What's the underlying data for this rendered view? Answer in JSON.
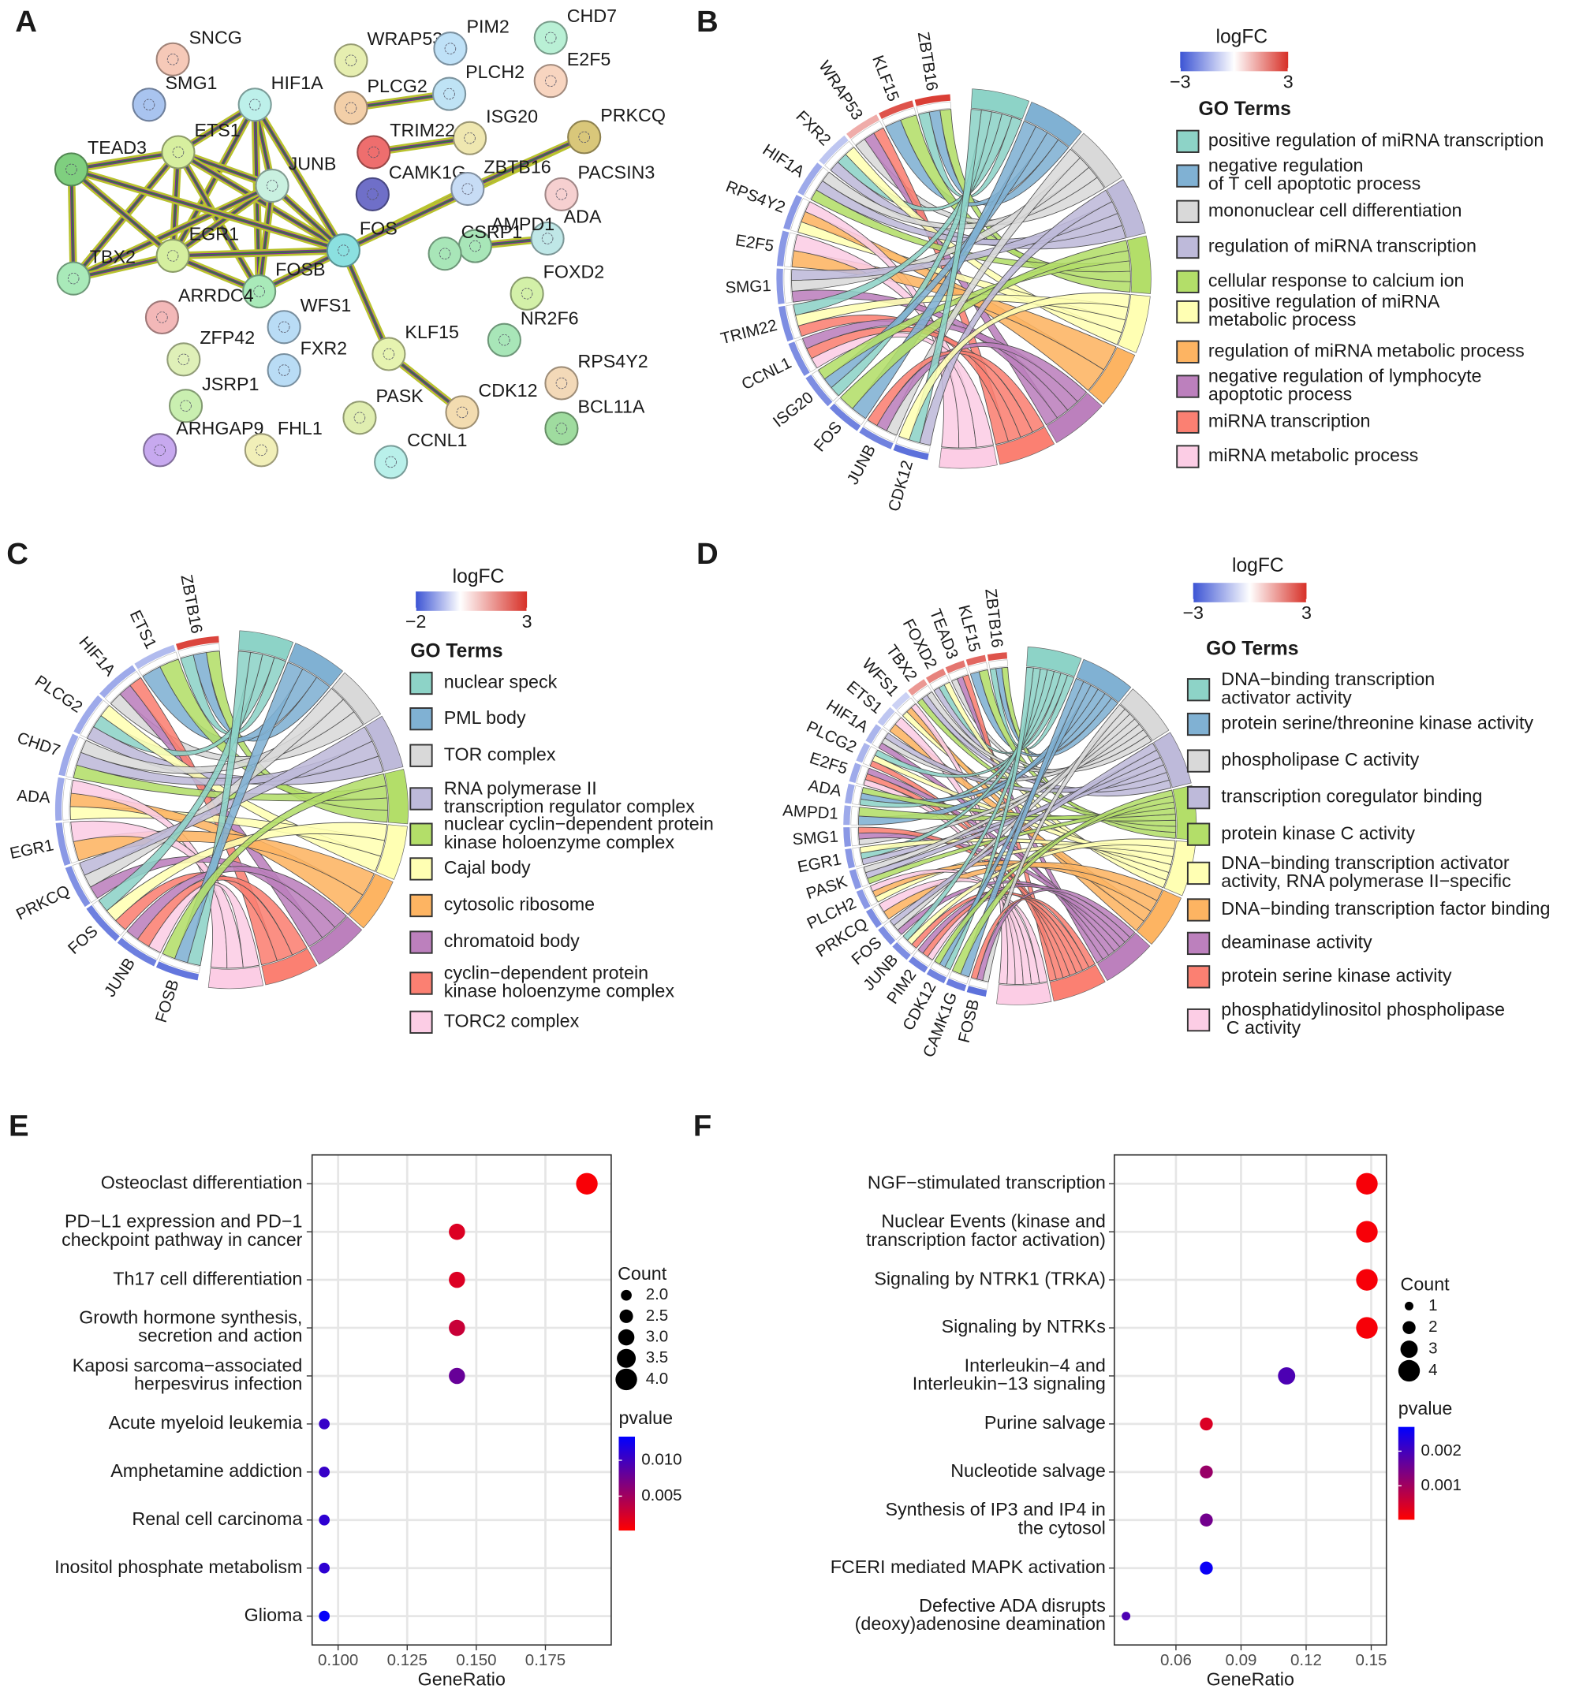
{
  "panel_labels": [
    "A",
    "B",
    "C",
    "D",
    "E",
    "F"
  ],
  "network": {
    "nodes": [
      "SNCG",
      "SMG1",
      "HIF1A",
      "WRAP53",
      "PIM2",
      "CHD7",
      "E2F5",
      "PLCG2",
      "PLCH2",
      "ISG20",
      "PRKCQ",
      "TEAD3",
      "ETS1",
      "TRIM22",
      "JUNB",
      "CAMK1G",
      "ZBTB16",
      "PACSIN3",
      "FOS",
      "EGR1",
      "ADA",
      "AMPD1",
      "CSRP1",
      "FOXD2",
      "TBX2",
      "FOSB",
      "ARRDC4",
      "WFS1",
      "NR2F6",
      "KLF15",
      "ZFP42",
      "FXR2",
      "RPS4Y2",
      "JSRP1",
      "CDK12",
      "PASK",
      "BCL11A",
      "ARHGAP9",
      "FHL1",
      "CCNL1"
    ]
  },
  "chords": [
    {
      "genes": [
        "ZBTB16",
        "KLF15",
        "WRAP53",
        "FXR2",
        "HIF1A",
        "RPS4Y2",
        "E2F5",
        "SMG1",
        "TRIM22",
        "CCNL1",
        "ISG20",
        "FOS",
        "JUNB",
        "CDK12"
      ],
      "logfc": [
        2.8,
        2.5,
        1.2,
        -1,
        -1.5,
        -1.8,
        -1.8,
        -1.8,
        -2,
        -2,
        -2,
        -2.2,
        -2.2,
        -2.5
      ],
      "legend": {
        "title": "logFC",
        "ticks": [
          {
            "value": -3,
            "label": "−3"
          },
          3
        ],
        "low_color": "#3c54d4",
        "high_color": "#d73027"
      },
      "terms_title": "GO Terms",
      "terms": [
        {
          "name": "positive regulation of miRNA transcription",
          "color": "#8dd3c7"
        },
        {
          "name": "negative regulation\nof T cell apoptotic process",
          "color": "#80b1d3"
        },
        {
          "name": "mononuclear cell differentiation",
          "color": "#d9d9d9"
        },
        {
          "name": "regulation of miRNA transcription",
          "color": "#bebada"
        },
        {
          "name": "cellular response to calcium ion",
          "color": "#b3de69"
        },
        {
          "name": "positive regulation of miRNA\nmetabolic process",
          "color": "#ffffb3"
        },
        {
          "name": "regulation of miRNA metabolic process",
          "color": "#fdb462"
        },
        {
          "name": "negative regulation of lymphocyte\napoptotic process",
          "color": "#bc80bd"
        },
        {
          "name": "miRNA transcription",
          "color": "#fb8072"
        },
        {
          "name": "miRNA metabolic process",
          "color": "#fccde5"
        }
      ]
    },
    {
      "genes": [
        "ZBTB16",
        "ETS1",
        "HIF1A",
        "PLCG2",
        "CHD7",
        "ADA",
        "EGR1",
        "PRKCQ",
        "FOS",
        "JUNB",
        "FOSB"
      ],
      "logfc": [
        2.7,
        -0.8,
        -1,
        -1,
        -1,
        -1,
        -1.2,
        -1.3,
        -1.5,
        -1.5,
        -1.6
      ],
      "legend": {
        "title": "logFC",
        "ticks": [
          {
            "value": -2,
            "label": "−2"
          },
          3
        ],
        "low_color": "#3c54d4",
        "high_color": "#d73027"
      },
      "terms_title": "GO Terms",
      "terms": [
        {
          "name": "nuclear speck",
          "color": "#8dd3c7"
        },
        {
          "name": "PML body",
          "color": "#80b1d3"
        },
        {
          "name": "TOR complex",
          "color": "#d9d9d9"
        },
        {
          "name": "RNA polymerase II\ntranscription regulator complex",
          "color": "#bebada"
        },
        {
          "name": "nuclear cyclin−dependent protein\nkinase holoenzyme complex",
          "color": "#b3de69"
        },
        {
          "name": "Cajal body",
          "color": "#ffffb3"
        },
        {
          "name": "cytosolic ribosome",
          "color": "#fdb462"
        },
        {
          "name": "chromatoid body",
          "color": "#bc80bd"
        },
        {
          "name": "cyclin−dependent protein\nkinase holoenzyme complex",
          "color": "#fb8072"
        },
        {
          "name": "TORC2 complex",
          "color": "#fccde5"
        }
      ]
    },
    {
      "genes": [
        "ZBTB16",
        "KLF15",
        "TEAD3",
        "FOXD2",
        "TBX2",
        "WFS1",
        "ETS1",
        "HIF1A",
        "PLCG2",
        "E2F5",
        "ADA",
        "AMPD1",
        "SMG1",
        "EGR1",
        "PASK",
        "PLCH2",
        "PRKCQ",
        "FOS",
        "JUNB",
        "PIM2",
        "CDK12",
        "CAMK1G",
        "FOSB"
      ],
      "logfc": [
        2.5,
        2.2,
        2,
        1.8,
        1.5,
        -0.8,
        -1,
        -1.3,
        -1.3,
        -1.5,
        -1.5,
        -1.5,
        -1.8,
        -1.8,
        -1.8,
        -1.8,
        -2,
        -2,
        -2,
        -2.2,
        -2.2,
        -2.3,
        -2.5
      ],
      "legend": {
        "title": "logFC",
        "ticks": [
          {
            "value": -3,
            "label": "−3"
          },
          3
        ],
        "low_color": "#3c54d4",
        "high_color": "#d73027"
      },
      "terms_title": "GO Terms",
      "terms": [
        {
          "name": "DNA−binding transcription\nactivator activity",
          "color": "#8dd3c7"
        },
        {
          "name": "protein serine/threonine kinase activity",
          "color": "#80b1d3"
        },
        {
          "name": "phospholipase C activity",
          "color": "#d9d9d9"
        },
        {
          "name": "transcription coregulator binding",
          "color": "#bebada"
        },
        {
          "name": "protein kinase C activity",
          "color": "#b3de69"
        },
        {
          "name": "DNA−binding transcription activator\nactivity, RNA polymerase II−specific",
          "color": "#ffffb3"
        },
        {
          "name": "DNA−binding transcription factor binding",
          "color": "#fdb462"
        },
        {
          "name": "deaminase activity",
          "color": "#bc80bd"
        },
        {
          "name": "protein serine kinase activity",
          "color": "#fb8072"
        },
        {
          "name": "phosphatidylinositol phospholipase\n C activity",
          "color": "#fccde5"
        }
      ]
    }
  ],
  "chart_data": [
    {
      "type": "dot",
      "x_label": "GeneRatio",
      "categories": [
        "Osteoclast differentiation",
        "PD−L1 expression and PD−1\ncheckpoint pathway in cancer",
        "Th17 cell differentiation",
        "Growth hormone synthesis,\nsecretion and action",
        "Kaposi sarcoma−associated\nherpesvirus infection",
        "Acute myeloid leukemia",
        "Amphetamine addiction",
        "Renal cell carcinoma",
        "Inositol phosphate metabolism",
        "Glioma"
      ],
      "values": [
        0.19,
        0.143,
        0.143,
        0.143,
        0.143,
        0.095,
        0.095,
        0.095,
        0.095,
        0.095
      ],
      "sizes": [
        4,
        3,
        3,
        3,
        3,
        2,
        2,
        2,
        2,
        2
      ],
      "pvalues": [
        0.0005,
        0.002,
        0.002,
        0.003,
        0.008,
        0.0105,
        0.0105,
        0.011,
        0.011,
        0.013
      ],
      "xlim": [
        0.0906,
        0.1988
      ],
      "xticks": [
        {
          "value": 0.1,
          "label": "0.100"
        },
        0.125,
        {
          "value": 0.15,
          "label": "0.150"
        },
        0.175
      ],
      "grid": true,
      "size_legend": {
        "title": "Count",
        "values": [
          {
            "value": 2,
            "label": "2.0"
          },
          2.5,
          {
            "value": 3,
            "label": "3.0"
          },
          3.5,
          {
            "value": 4,
            "label": "4.0"
          }
        ]
      },
      "color_legend": {
        "title": "pvalue",
        "lim": [
          0.0002,
          0.0133
        ],
        "ticks": [
          {
            "value": 0.005,
            "label": "0.005"
          },
          {
            "value": 0.01,
            "label": "0.010"
          }
        ],
        "low_color": "#ff0000",
        "high_color": "#0000ff"
      }
    },
    {
      "type": "dot",
      "x_label": "GeneRatio",
      "categories": [
        "NGF−stimulated transcription",
        "Nuclear Events (kinase and\ntranscription factor activation)",
        "Signaling by NTRK1 (TRKA)",
        "Signaling by NTRKs",
        "Interleukin−4 and\nInterleukin−13 signaling",
        "Purine salvage",
        "Nucleotide salvage",
        "Synthesis of IP3 and IP4 in\nthe cytosol",
        "FCERI mediated MAPK activation",
        "Defective ADA disrupts\n(deoxy)adenosine deamination"
      ],
      "values": [
        0.148,
        0.148,
        0.148,
        0.148,
        0.111,
        0.074,
        0.074,
        0.074,
        0.074,
        0.037
      ],
      "sizes": [
        4,
        4,
        4,
        4,
        3,
        2,
        2,
        2,
        2,
        1
      ],
      "pvalues": [
        0.0001,
        0.0001,
        0.0001,
        0.0001,
        0.0019,
        0.0004,
        0.0011,
        0.0015,
        0.0026,
        0.0019
      ],
      "xlim": [
        0.0316,
        0.157
      ],
      "xticks": [
        0.06,
        0.09,
        0.12,
        0.15
      ],
      "grid": true,
      "size_legend": {
        "title": "Count",
        "values": [
          1,
          2,
          3,
          4
        ]
      },
      "color_legend": {
        "title": "pvalue",
        "lim": [
          2e-05,
          0.0027
        ],
        "ticks": [
          0.001,
          0.002
        ],
        "low_color": "#ff0000",
        "high_color": "#0000ff"
      }
    }
  ]
}
